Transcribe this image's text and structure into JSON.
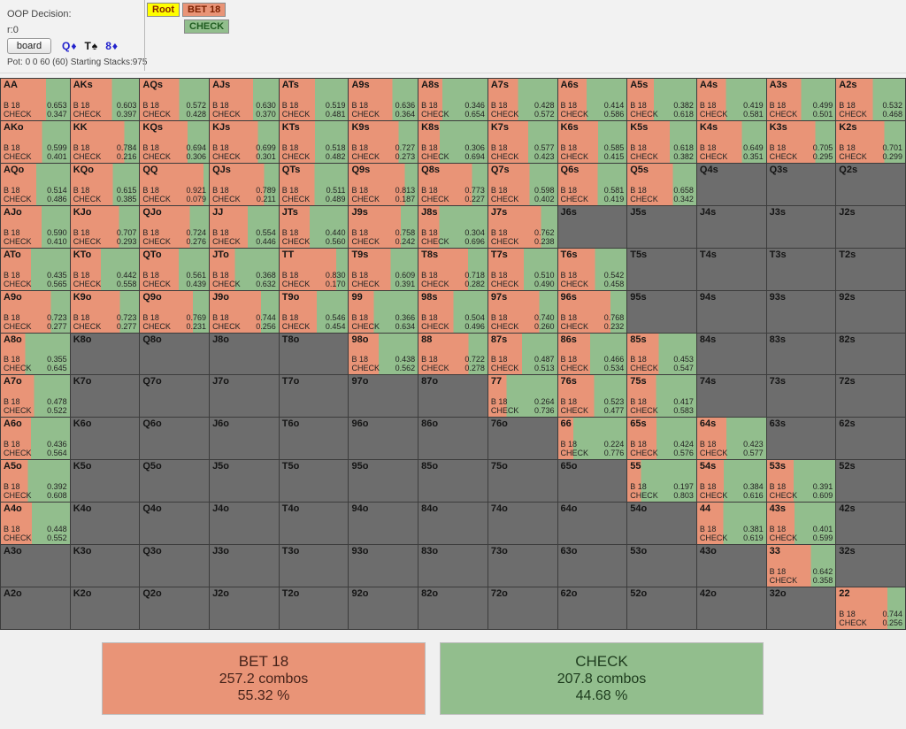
{
  "header": {
    "title": "OOP Decision:",
    "node_id": "r:0",
    "board_button_label": "board",
    "board_cards": [
      {
        "rank": "Q",
        "suit": "♦",
        "color": "#2222cc"
      },
      {
        "rank": "T",
        "suit": "♠",
        "color": "#111111"
      },
      {
        "rank": "8",
        "suit": "♦",
        "color": "#2222cc"
      }
    ],
    "pot_line": "Pot: 0 0 60 (60) Starting Stacks:975",
    "tree": {
      "root_label": "Root",
      "bet_label": "BET 18",
      "check_label": "CHECK"
    }
  },
  "actions": {
    "bet_label": "B 18",
    "check_label": "CHECK"
  },
  "colors": {
    "bet_color": "#E99477",
    "check_color": "#92BE8D",
    "empty_color": "#6D6D6D",
    "root_bg": "#FFFF00",
    "root_text": "#8B2500",
    "bet_node_text": "#7B2000",
    "check_node_text": "#1F5B1F"
  },
  "grid": {
    "rows": [
      [
        {
          "hand": "AA",
          "bet": 0.653,
          "check": 0.347
        },
        {
          "hand": "AKs",
          "bet": 0.603,
          "check": 0.397
        },
        {
          "hand": "AQs",
          "bet": 0.572,
          "check": 0.428
        },
        {
          "hand": "AJs",
          "bet": 0.63,
          "check": 0.37
        },
        {
          "hand": "ATs",
          "bet": 0.519,
          "check": 0.481
        },
        {
          "hand": "A9s",
          "bet": 0.636,
          "check": 0.364
        },
        {
          "hand": "A8s",
          "bet": 0.346,
          "check": 0.654
        },
        {
          "hand": "A7s",
          "bet": 0.428,
          "check": 0.572
        },
        {
          "hand": "A6s",
          "bet": 0.414,
          "check": 0.586
        },
        {
          "hand": "A5s",
          "bet": 0.382,
          "check": 0.618
        },
        {
          "hand": "A4s",
          "bet": 0.419,
          "check": 0.581
        },
        {
          "hand": "A3s",
          "bet": 0.499,
          "check": 0.501
        },
        {
          "hand": "A2s",
          "bet": 0.532,
          "check": 0.468
        }
      ],
      [
        {
          "hand": "AKo",
          "bet": 0.599,
          "check": 0.401
        },
        {
          "hand": "KK",
          "bet": 0.784,
          "check": 0.216
        },
        {
          "hand": "KQs",
          "bet": 0.694,
          "check": 0.306
        },
        {
          "hand": "KJs",
          "bet": 0.699,
          "check": 0.301
        },
        {
          "hand": "KTs",
          "bet": 0.518,
          "check": 0.482
        },
        {
          "hand": "K9s",
          "bet": 0.727,
          "check": 0.273
        },
        {
          "hand": "K8s",
          "bet": 0.306,
          "check": 0.694
        },
        {
          "hand": "K7s",
          "bet": 0.577,
          "check": 0.423
        },
        {
          "hand": "K6s",
          "bet": 0.585,
          "check": 0.415
        },
        {
          "hand": "K5s",
          "bet": 0.618,
          "check": 0.382
        },
        {
          "hand": "K4s",
          "bet": 0.649,
          "check": 0.351
        },
        {
          "hand": "K3s",
          "bet": 0.705,
          "check": 0.295
        },
        {
          "hand": "K2s",
          "bet": 0.701,
          "check": 0.299
        }
      ],
      [
        {
          "hand": "AQo",
          "bet": 0.514,
          "check": 0.486
        },
        {
          "hand": "KQo",
          "bet": 0.615,
          "check": 0.385
        },
        {
          "hand": "QQ",
          "bet": 0.921,
          "check": 0.079
        },
        {
          "hand": "QJs",
          "bet": 0.789,
          "check": 0.211
        },
        {
          "hand": "QTs",
          "bet": 0.511,
          "check": 0.489
        },
        {
          "hand": "Q9s",
          "bet": 0.813,
          "check": 0.187
        },
        {
          "hand": "Q8s",
          "bet": 0.773,
          "check": 0.227
        },
        {
          "hand": "Q7s",
          "bet": 0.598,
          "check": 0.402
        },
        {
          "hand": "Q6s",
          "bet": 0.581,
          "check": 0.419
        },
        {
          "hand": "Q5s",
          "bet": 0.658,
          "check": 0.342
        },
        {
          "hand": "Q4s"
        },
        {
          "hand": "Q3s"
        },
        {
          "hand": "Q2s"
        }
      ],
      [
        {
          "hand": "AJo",
          "bet": 0.59,
          "check": 0.41
        },
        {
          "hand": "KJo",
          "bet": 0.707,
          "check": 0.293
        },
        {
          "hand": "QJo",
          "bet": 0.724,
          "check": 0.276
        },
        {
          "hand": "JJ",
          "bet": 0.554,
          "check": 0.446
        },
        {
          "hand": "JTs",
          "bet": 0.44,
          "check": 0.56
        },
        {
          "hand": "J9s",
          "bet": 0.758,
          "check": 0.242
        },
        {
          "hand": "J8s",
          "bet": 0.304,
          "check": 0.696
        },
        {
          "hand": "J7s",
          "bet": 0.762,
          "check": 0.238
        },
        {
          "hand": "J6s"
        },
        {
          "hand": "J5s"
        },
        {
          "hand": "J4s"
        },
        {
          "hand": "J3s"
        },
        {
          "hand": "J2s"
        }
      ],
      [
        {
          "hand": "ATo",
          "bet": 0.435,
          "check": 0.565
        },
        {
          "hand": "KTo",
          "bet": 0.442,
          "check": 0.558
        },
        {
          "hand": "QTo",
          "bet": 0.561,
          "check": 0.439
        },
        {
          "hand": "JTo",
          "bet": 0.368,
          "check": 0.632
        },
        {
          "hand": "TT",
          "bet": 0.83,
          "check": 0.17
        },
        {
          "hand": "T9s",
          "bet": 0.609,
          "check": 0.391
        },
        {
          "hand": "T8s",
          "bet": 0.718,
          "check": 0.282
        },
        {
          "hand": "T7s",
          "bet": 0.51,
          "check": 0.49
        },
        {
          "hand": "T6s",
          "bet": 0.542,
          "check": 0.458
        },
        {
          "hand": "T5s"
        },
        {
          "hand": "T4s"
        },
        {
          "hand": "T3s"
        },
        {
          "hand": "T2s"
        }
      ],
      [
        {
          "hand": "A9o",
          "bet": 0.723,
          "check": 0.277
        },
        {
          "hand": "K9o",
          "bet": 0.723,
          "check": 0.277
        },
        {
          "hand": "Q9o",
          "bet": 0.769,
          "check": 0.231
        },
        {
          "hand": "J9o",
          "bet": 0.744,
          "check": 0.256
        },
        {
          "hand": "T9o",
          "bet": 0.546,
          "check": 0.454
        },
        {
          "hand": "99",
          "bet": 0.366,
          "check": 0.634
        },
        {
          "hand": "98s",
          "bet": 0.504,
          "check": 0.496
        },
        {
          "hand": "97s",
          "bet": 0.74,
          "check": 0.26
        },
        {
          "hand": "96s",
          "bet": 0.768,
          "check": 0.232
        },
        {
          "hand": "95s"
        },
        {
          "hand": "94s"
        },
        {
          "hand": "93s"
        },
        {
          "hand": "92s"
        }
      ],
      [
        {
          "hand": "A8o",
          "bet": 0.355,
          "check": 0.645
        },
        {
          "hand": "K8o"
        },
        {
          "hand": "Q8o"
        },
        {
          "hand": "J8o"
        },
        {
          "hand": "T8o"
        },
        {
          "hand": "98o",
          "bet": 0.438,
          "check": 0.562
        },
        {
          "hand": "88",
          "bet": 0.722,
          "check": 0.278
        },
        {
          "hand": "87s",
          "bet": 0.487,
          "check": 0.513
        },
        {
          "hand": "86s",
          "bet": 0.466,
          "check": 0.534
        },
        {
          "hand": "85s",
          "bet": 0.453,
          "check": 0.547
        },
        {
          "hand": "84s"
        },
        {
          "hand": "83s"
        },
        {
          "hand": "82s"
        }
      ],
      [
        {
          "hand": "A7o",
          "bet": 0.478,
          "check": 0.522
        },
        {
          "hand": "K7o"
        },
        {
          "hand": "Q7o"
        },
        {
          "hand": "J7o"
        },
        {
          "hand": "T7o"
        },
        {
          "hand": "97o"
        },
        {
          "hand": "87o"
        },
        {
          "hand": "77",
          "bet": 0.264,
          "check": 0.736
        },
        {
          "hand": "76s",
          "bet": 0.523,
          "check": 0.477
        },
        {
          "hand": "75s",
          "bet": 0.417,
          "check": 0.583
        },
        {
          "hand": "74s"
        },
        {
          "hand": "73s"
        },
        {
          "hand": "72s"
        }
      ],
      [
        {
          "hand": "A6o",
          "bet": 0.436,
          "check": 0.564
        },
        {
          "hand": "K6o"
        },
        {
          "hand": "Q6o"
        },
        {
          "hand": "J6o"
        },
        {
          "hand": "T6o"
        },
        {
          "hand": "96o"
        },
        {
          "hand": "86o"
        },
        {
          "hand": "76o"
        },
        {
          "hand": "66",
          "bet": 0.224,
          "check": 0.776
        },
        {
          "hand": "65s",
          "bet": 0.424,
          "check": 0.576
        },
        {
          "hand": "64s",
          "bet": 0.423,
          "check": 0.577
        },
        {
          "hand": "63s"
        },
        {
          "hand": "62s"
        }
      ],
      [
        {
          "hand": "A5o",
          "bet": 0.392,
          "check": 0.608
        },
        {
          "hand": "K5o"
        },
        {
          "hand": "Q5o"
        },
        {
          "hand": "J5o"
        },
        {
          "hand": "T5o"
        },
        {
          "hand": "95o"
        },
        {
          "hand": "85o"
        },
        {
          "hand": "75o"
        },
        {
          "hand": "65o"
        },
        {
          "hand": "55",
          "bet": 0.197,
          "check": 0.803
        },
        {
          "hand": "54s",
          "bet": 0.384,
          "check": 0.616
        },
        {
          "hand": "53s",
          "bet": 0.391,
          "check": 0.609
        },
        {
          "hand": "52s"
        }
      ],
      [
        {
          "hand": "A4o",
          "bet": 0.448,
          "check": 0.552
        },
        {
          "hand": "K4o"
        },
        {
          "hand": "Q4o"
        },
        {
          "hand": "J4o"
        },
        {
          "hand": "T4o"
        },
        {
          "hand": "94o"
        },
        {
          "hand": "84o"
        },
        {
          "hand": "74o"
        },
        {
          "hand": "64o"
        },
        {
          "hand": "54o"
        },
        {
          "hand": "44",
          "bet": 0.381,
          "check": 0.619
        },
        {
          "hand": "43s",
          "bet": 0.401,
          "check": 0.599
        },
        {
          "hand": "42s"
        }
      ],
      [
        {
          "hand": "A3o"
        },
        {
          "hand": "K3o"
        },
        {
          "hand": "Q3o"
        },
        {
          "hand": "J3o"
        },
        {
          "hand": "T3o"
        },
        {
          "hand": "93o"
        },
        {
          "hand": "83o"
        },
        {
          "hand": "73o"
        },
        {
          "hand": "63o"
        },
        {
          "hand": "53o"
        },
        {
          "hand": "43o"
        },
        {
          "hand": "33",
          "bet": 0.642,
          "check": 0.358
        },
        {
          "hand": "32s"
        }
      ],
      [
        {
          "hand": "A2o"
        },
        {
          "hand": "K2o"
        },
        {
          "hand": "Q2o"
        },
        {
          "hand": "J2o"
        },
        {
          "hand": "T2o"
        },
        {
          "hand": "92o"
        },
        {
          "hand": "82o"
        },
        {
          "hand": "72o"
        },
        {
          "hand": "62o"
        },
        {
          "hand": "52o"
        },
        {
          "hand": "42o"
        },
        {
          "hand": "32o"
        },
        {
          "hand": "22",
          "bet": 0.744,
          "check": 0.256
        }
      ]
    ]
  },
  "summary": {
    "bet": {
      "title": "BET 18",
      "combos": "257.2 combos",
      "pct": "55.32 %"
    },
    "check": {
      "title": "CHECK",
      "combos": "207.8 combos",
      "pct": "44.68 %"
    }
  }
}
